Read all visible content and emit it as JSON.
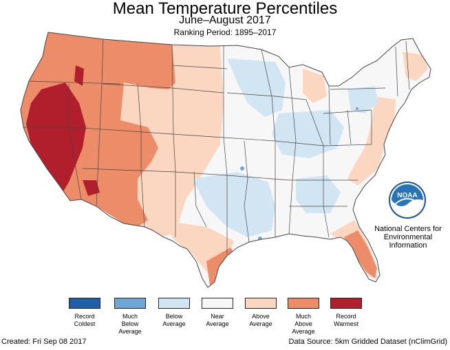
{
  "title": "Mean Temperature Percentiles",
  "subtitle": "June–August 2017",
  "ranking_period": "Ranking Period: 1895–2017",
  "logo": {
    "icon": "noaa-logo-icon",
    "wordmark": "NOAA",
    "org_lines": [
      "National Centers for",
      "Environmental",
      "Information"
    ]
  },
  "legend": [
    {
      "label_lines": [
        "Record",
        "Coldest"
      ],
      "color": "#1f5fa8"
    },
    {
      "label_lines": [
        "Much",
        "Below",
        "Average"
      ],
      "color": "#6fa6d3"
    },
    {
      "label_lines": [
        "Below",
        "Average"
      ],
      "color": "#d2e5f2"
    },
    {
      "label_lines": [
        "Near",
        "Average"
      ],
      "color": "#f7f7f7"
    },
    {
      "label_lines": [
        "Above",
        "Average"
      ],
      "color": "#fbd6c0"
    },
    {
      "label_lines": [
        "Much",
        "Above",
        "Average"
      ],
      "color": "#ec8c69"
    },
    {
      "label_lines": [
        "Record",
        "Warmest"
      ],
      "color": "#b11f2c"
    }
  ],
  "footer": {
    "created": "Created: Fri Sep 08 2017",
    "source": "Data Source: 5km Gridded Dataset (nClimGrid)"
  }
}
